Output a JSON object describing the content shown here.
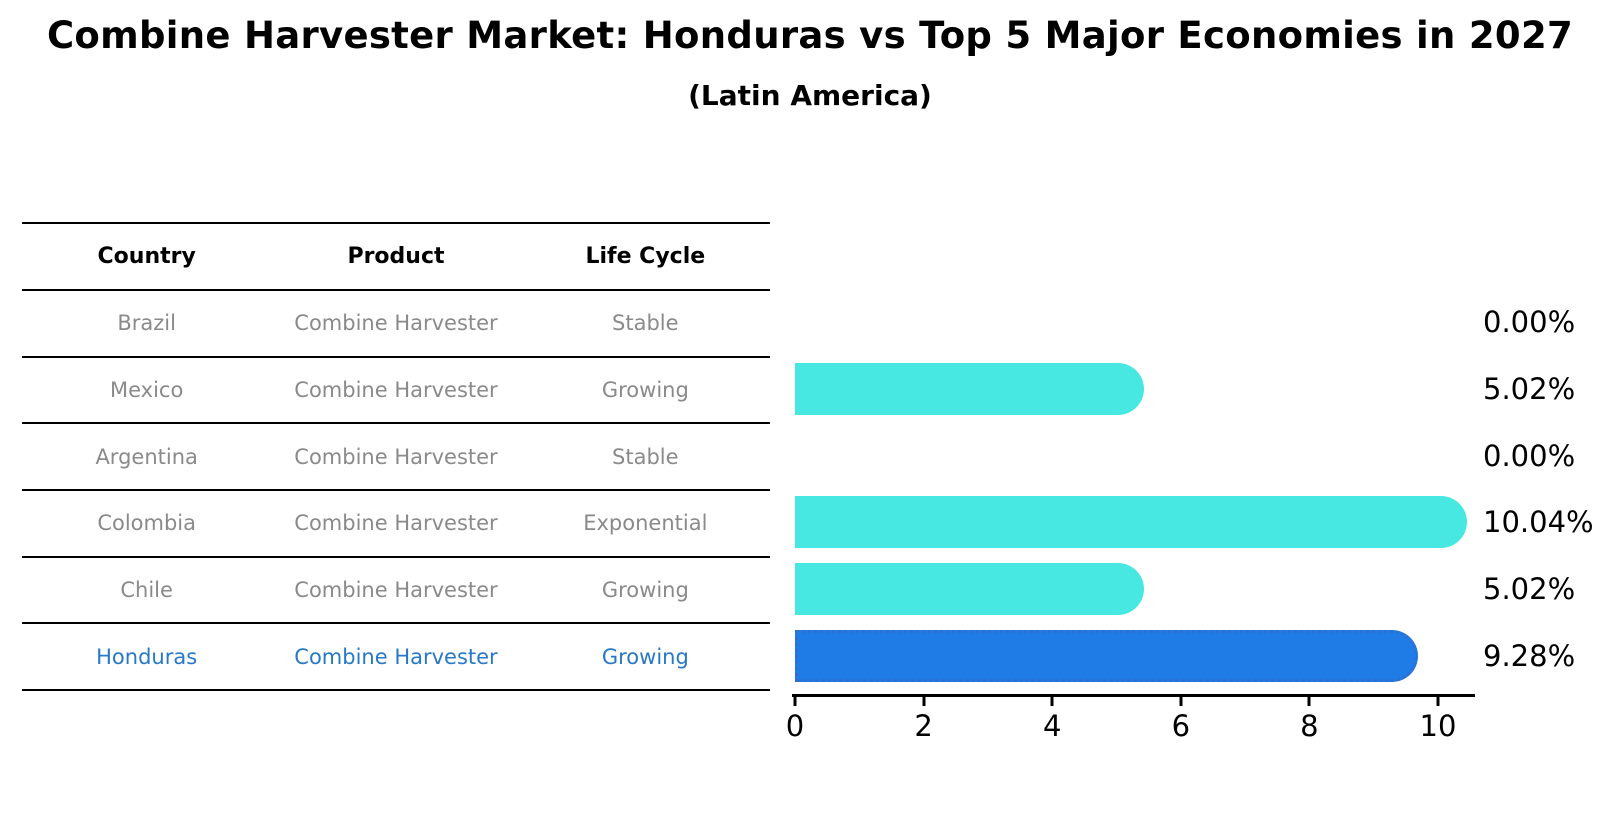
{
  "chart_data": {
    "type": "bar",
    "orientation": "horizontal",
    "title": "Combine Harvester Market: Honduras vs Top 5 Major Economies in 2027",
    "subtitle": "(Latin America)",
    "categories": [
      "Brazil",
      "Mexico",
      "Argentina",
      "Colombia",
      "Chile",
      "Honduras"
    ],
    "values": [
      0.0,
      5.02,
      0.0,
      10.04,
      5.02,
      9.28
    ],
    "value_labels": [
      "0.00%",
      "5.02%",
      "0.00%",
      "10.04%",
      "5.02%",
      "9.28%"
    ],
    "x_ticks": [
      "0",
      "2",
      "4",
      "6",
      "8",
      "10"
    ],
    "xlim": [
      0,
      10.6
    ],
    "grid": false,
    "legend": false,
    "highlight_index": 5,
    "bar_color": "#47e8e2",
    "highlight_bar_color": "#1f7ce6",
    "highlight_border_color": "#2e6fd2"
  },
  "table": {
    "headers": [
      "Country",
      "Product",
      "Life Cycle"
    ],
    "rows": [
      {
        "country": "Brazil",
        "product": "Combine Harvester",
        "life_cycle": "Stable",
        "highlighted": false
      },
      {
        "country": "Mexico",
        "product": "Combine Harvester",
        "life_cycle": "Growing",
        "highlighted": false
      },
      {
        "country": "Argentina",
        "product": "Combine Harvester",
        "life_cycle": "Stable",
        "highlighted": false
      },
      {
        "country": "Colombia",
        "product": "Combine Harvester",
        "life_cycle": "Exponential",
        "highlighted": false
      },
      {
        "country": "Chile",
        "product": "Combine Harvester",
        "life_cycle": "Growing",
        "highlighted": false
      },
      {
        "country": "Honduras",
        "product": "Combine Harvester",
        "life_cycle": "Growing",
        "highlighted": true
      }
    ],
    "text_color": "#8a8a8a",
    "highlight_text_color": "#2878c8"
  }
}
